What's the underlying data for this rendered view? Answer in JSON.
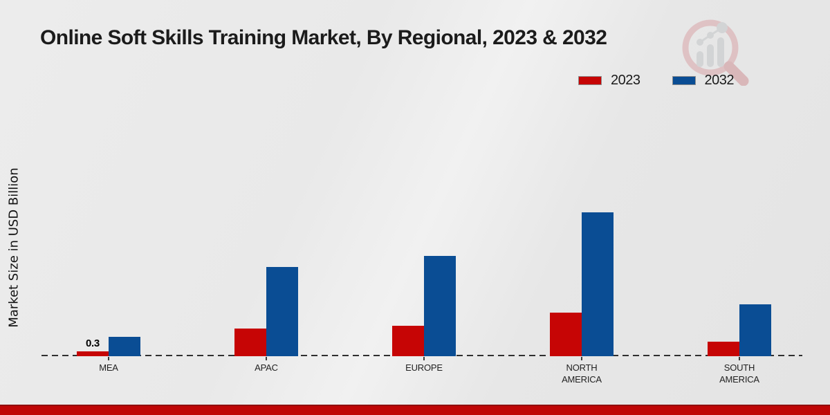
{
  "page": {
    "title": "Online Soft Skills Training Market, By Regional, 2023 & 2032"
  },
  "axes": {
    "ylabel": "Market Size in USD Billion"
  },
  "chart_data": {
    "type": "bar",
    "title": "Online Soft Skills Training Market, By Regional, 2023 & 2032",
    "xlabel": "",
    "ylabel": "Market Size in USD Billion",
    "unit": "USD Billion",
    "categories": [
      "MEA",
      "APAC",
      "EUROPE",
      "NORTH AMERICA",
      "SOUTH AMERICA"
    ],
    "series": [
      {
        "name": "2023",
        "color": "#c60505",
        "values": [
          0.3,
          1.7,
          1.9,
          2.7,
          0.9
        ]
      },
      {
        "name": "2032",
        "color": "#0a4d94",
        "values": [
          1.2,
          5.5,
          6.2,
          8.9,
          3.2
        ]
      }
    ],
    "data_labels": [
      {
        "category": "MEA",
        "series": "2023",
        "text": "0.3"
      }
    ],
    "ylim": [
      0,
      10
    ],
    "grid": false,
    "yaxis_ticks_visible": false,
    "baseline_style": "dashed",
    "legend_position": "top-right"
  },
  "branding": {
    "logo_icon": "magnifier-bar-chart-logo",
    "accent_red": "#bf0606",
    "accent_blue": "#0a4d94"
  }
}
